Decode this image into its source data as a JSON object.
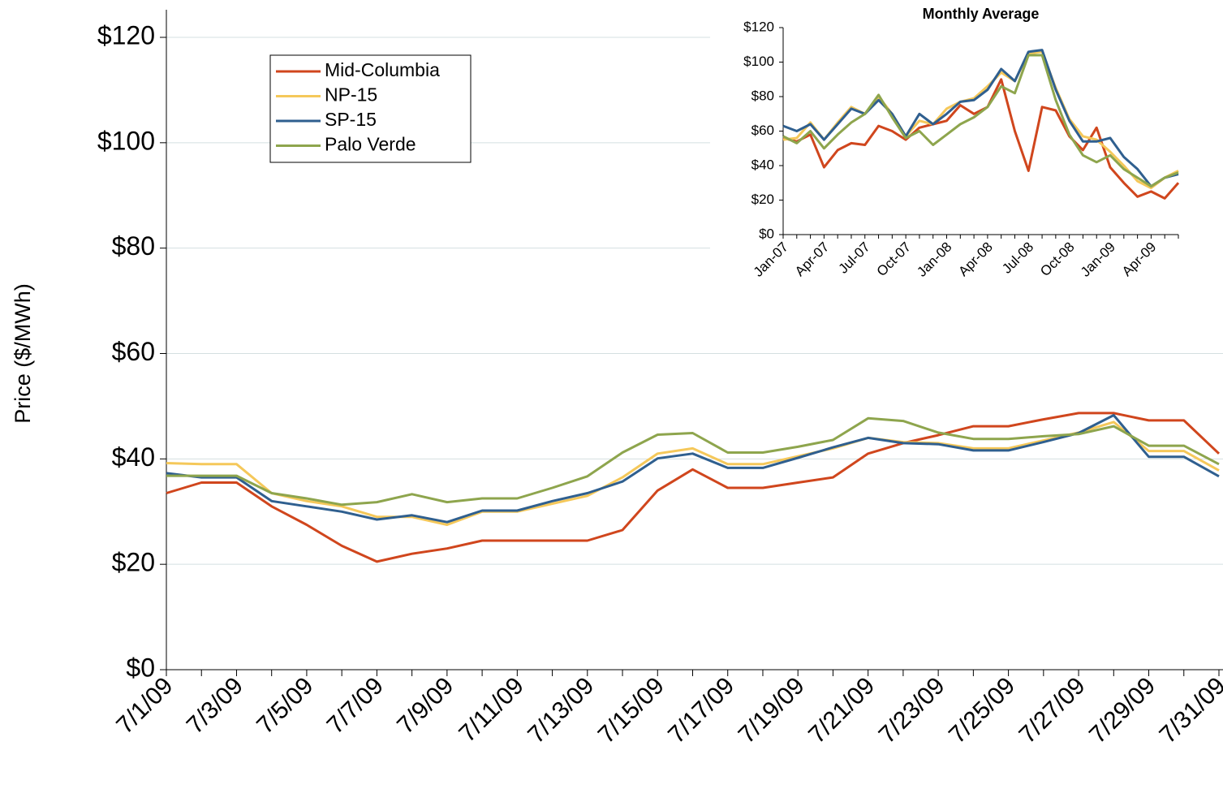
{
  "chart_data": [
    {
      "type": "line",
      "y_label": "Price ($/MWh)",
      "categories": [
        "7/1/09",
        null,
        "7/3/09",
        null,
        "7/5/09",
        null,
        "7/7/09",
        null,
        "7/9/09",
        null,
        "7/11/09",
        null,
        "7/13/09",
        null,
        "7/15/09",
        null,
        "7/17/09",
        null,
        "7/19/09",
        null,
        "7/21/09",
        null,
        "7/23/09",
        null,
        "7/25/09",
        null,
        "7/27/09",
        null,
        "7/29/09",
        null,
        "7/31/09"
      ],
      "ylim": [
        0,
        120
      ],
      "yticks": [
        {
          "value": 0,
          "label": "$0"
        },
        {
          "value": 20,
          "label": "$20"
        },
        {
          "value": 40,
          "label": "$40"
        },
        {
          "value": 60,
          "label": "$60"
        },
        {
          "value": 80,
          "label": "$80"
        },
        {
          "value": 100,
          "label": "$100"
        },
        {
          "value": 120,
          "label": "$120"
        }
      ],
      "grid": true,
      "legend": "upper-left",
      "series": [
        {
          "name": "Mid-Columbia",
          "color": "#d0461d",
          "values": [
            33.5,
            35.5,
            35.5,
            31,
            27.5,
            23.5,
            20.5,
            22,
            23,
            24.5,
            24.5,
            24.5,
            24.5,
            26.5,
            34,
            38,
            34.5,
            34.5,
            35.5,
            36.5,
            41,
            43,
            44.5,
            46.2,
            46.2,
            47.5,
            48.7,
            48.7,
            47.3,
            47.3,
            41
          ]
        },
        {
          "name": "NP-15",
          "color": "#f5c85a",
          "values": [
            39.2,
            39,
            39,
            33.5,
            32,
            31,
            29,
            29,
            27.5,
            30,
            30,
            31.5,
            33,
            36.5,
            41,
            42,
            39,
            39,
            40.5,
            42,
            44,
            43.2,
            43,
            42,
            42,
            43.5,
            45,
            47,
            41.5,
            41.5,
            37.8
          ]
        },
        {
          "name": "SP-15",
          "color": "#2f5f8f",
          "values": [
            37.3,
            36.5,
            36.5,
            32,
            31,
            30,
            28.5,
            29.3,
            28,
            30.2,
            30.2,
            32,
            33.5,
            35.7,
            40.1,
            41,
            38.3,
            38.3,
            40.2,
            42.2,
            44,
            43,
            42.8,
            41.6,
            41.6,
            43.2,
            44.9,
            48.3,
            40.4,
            40.4,
            36.7
          ]
        },
        {
          "name": "Palo Verde",
          "color": "#8ea54d",
          "values": [
            36.8,
            36.8,
            36.8,
            33.5,
            32.5,
            31.3,
            31.8,
            33.3,
            31.8,
            32.5,
            32.5,
            34.5,
            36.7,
            41.2,
            44.6,
            44.9,
            41.2,
            41.2,
            42.3,
            43.6,
            47.7,
            47.2,
            45,
            43.8,
            43.8,
            44.3,
            44.7,
            46.2,
            42.5,
            42.5,
            39
          ]
        }
      ]
    },
    {
      "type": "line",
      "title": "Monthly Average",
      "categories": [
        "Jan-07",
        null,
        null,
        "Apr-07",
        null,
        null,
        "Jul-07",
        null,
        null,
        "Oct-07",
        null,
        null,
        "Jan-08",
        null,
        null,
        "Apr-08",
        null,
        null,
        "Jul-08",
        null,
        null,
        "Oct-08",
        null,
        null,
        "Jan-09",
        null,
        null,
        "Apr-09",
        null,
        null
      ],
      "ylim": [
        0,
        120
      ],
      "yticks": [
        {
          "value": 0,
          "label": "$0"
        },
        {
          "value": 20,
          "label": "$20"
        },
        {
          "value": 40,
          "label": "$40"
        },
        {
          "value": 60,
          "label": "$60"
        },
        {
          "value": 80,
          "label": "$80"
        },
        {
          "value": 100,
          "label": "$100"
        },
        {
          "value": 120,
          "label": "$120"
        }
      ],
      "grid": false,
      "series": [
        {
          "name": "Mid-Columbia",
          "color": "#d0461d",
          "values": [
            56,
            54,
            58,
            39,
            49,
            53,
            52,
            63,
            60,
            55,
            62,
            64,
            66,
            75,
            70,
            74,
            90,
            60,
            37,
            74,
            72,
            57,
            49,
            62,
            39,
            30,
            22,
            25,
            21,
            30
          ]
        },
        {
          "name": "NP-15",
          "color": "#f5c85a",
          "values": [
            55,
            56,
            65,
            55,
            65,
            74,
            70,
            80,
            70,
            57,
            66,
            64,
            73,
            77,
            79,
            86,
            94,
            89,
            105,
            106,
            85,
            67,
            57,
            55,
            48,
            40,
            31,
            27,
            33,
            37
          ]
        },
        {
          "name": "SP-15",
          "color": "#2f5f8f",
          "values": [
            63,
            60,
            64,
            55,
            64,
            73,
            70,
            78,
            70,
            57,
            70,
            64,
            70,
            77,
            78,
            84,
            96,
            89,
            106,
            107,
            84,
            66,
            54,
            54,
            56,
            45,
            38,
            28,
            33,
            35
          ]
        },
        {
          "name": "Palo Verde",
          "color": "#8ea54d",
          "values": [
            57,
            53,
            60,
            50,
            58,
            65,
            70,
            81,
            68,
            56,
            60,
            52,
            58,
            64,
            68,
            74,
            86,
            82,
            104,
            104,
            78,
            58,
            46,
            42,
            46,
            38,
            33,
            28,
            33,
            36
          ]
        }
      ]
    }
  ]
}
